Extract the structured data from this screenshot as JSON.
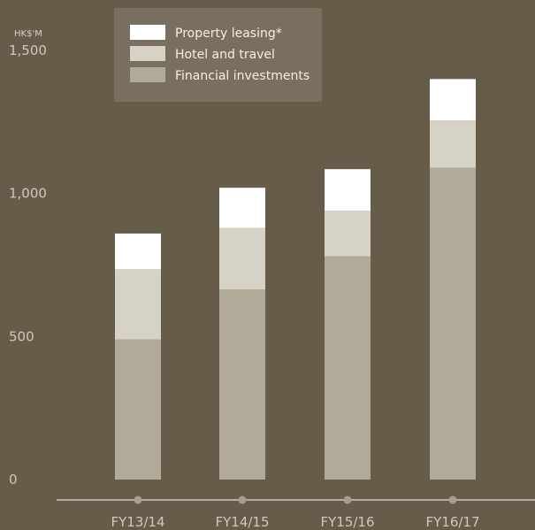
{
  "chart_data": {
    "type": "bar",
    "stacked": true,
    "unit_label": "HK$'M",
    "categories": [
      "FY13/14",
      "FY14/15",
      "FY15/16",
      "FY16/17"
    ],
    "series": [
      {
        "name": "Financial investments",
        "values": [
          490,
          665,
          780,
          1090
        ],
        "color": "#b1aa98"
      },
      {
        "name": "Hotel and travel",
        "values": [
          245,
          215,
          160,
          165
        ],
        "color": "#d6d2c5"
      },
      {
        "name": "Property leasing*",
        "values": [
          125,
          140,
          145,
          145
        ],
        "color": "#ffffff"
      }
    ],
    "ylim": [
      0,
      1500
    ],
    "yticks": [
      0,
      500,
      1000,
      1500
    ],
    "ytick_labels": [
      "0",
      "500",
      "1,000",
      "1,500"
    ],
    "legend_position": "top-left",
    "grid": false,
    "background_color": "#675b4a",
    "legend_box_color": "#7a6f5e",
    "axis_color": "#cfc9bd"
  }
}
